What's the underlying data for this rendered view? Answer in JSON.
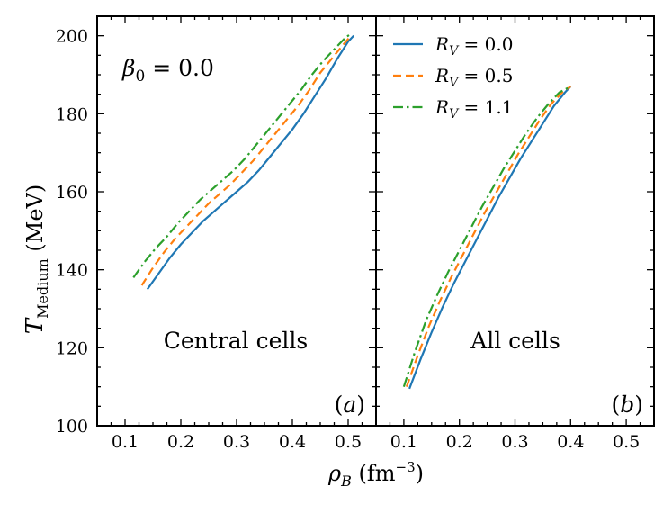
{
  "chart_data": {
    "type": "line",
    "xlabel": "ρ_B (fm^-3)",
    "ylabel": "T_Medium (MeV)",
    "xlim": [
      0.05,
      0.55
    ],
    "ylim": [
      100,
      205
    ],
    "xticks": [
      "0.1",
      "0.2",
      "0.3",
      "0.4",
      "0.5"
    ],
    "yticks": [
      "100",
      "120",
      "140",
      "160",
      "180",
      "200"
    ],
    "colors": {
      "rv0": "#1f77b4",
      "rv05": "#ff7f0e",
      "rv11": "#2ca02c"
    },
    "legend": {
      "placement": "top-left of panel (b)",
      "entries": [
        {
          "key": "rv0",
          "label": "R_V = 0.0",
          "dash": "solid"
        },
        {
          "key": "rv05",
          "label": "R_V = 0.5",
          "dash": "dashed"
        },
        {
          "key": "rv11",
          "label": "R_V = 1.1",
          "dash": "dashdot"
        }
      ]
    },
    "panels": [
      {
        "id": "a",
        "tag": "(a)",
        "title": "Central cells",
        "annotation": "β_0 = 0.0",
        "series": [
          {
            "key": "rv0",
            "x": [
              0.14,
              0.16,
              0.18,
              0.2,
              0.22,
              0.24,
              0.26,
              0.28,
              0.3,
              0.32,
              0.34,
              0.36,
              0.38,
              0.4,
              0.42,
              0.44,
              0.46,
              0.48,
              0.5,
              0.51
            ],
            "y": [
              135,
              139,
              143,
              146.5,
              149.5,
              152.5,
              155,
              157.5,
              160,
              162.5,
              165.5,
              169,
              172.5,
              176,
              180,
              184.5,
              189,
              194,
              198.5,
              200
            ]
          },
          {
            "key": "rv05",
            "x": [
              0.13,
              0.15,
              0.17,
              0.19,
              0.21,
              0.23,
              0.25,
              0.27,
              0.29,
              0.31,
              0.33,
              0.35,
              0.37,
              0.39,
              0.41,
              0.43,
              0.45,
              0.47,
              0.49,
              0.505
            ],
            "y": [
              136,
              140.5,
              144.5,
              148,
              151,
              154,
              157,
              159.5,
              162,
              165,
              168,
              171.5,
              175,
              178.5,
              182,
              186,
              190.5,
              194,
              197.5,
              200
            ]
          },
          {
            "key": "rv11",
            "x": [
              0.115,
              0.135,
              0.155,
              0.175,
              0.195,
              0.215,
              0.235,
              0.255,
              0.275,
              0.295,
              0.315,
              0.335,
              0.355,
              0.375,
              0.395,
              0.415,
              0.435,
              0.455,
              0.475,
              0.495,
              0.505
            ],
            "y": [
              138,
              142,
              145.5,
              148.5,
              152,
              155,
              158,
              160.5,
              163,
              165.5,
              168.5,
              172,
              175.5,
              179,
              182.5,
              186,
              190,
              193.5,
              196.5,
              199.5,
              200.5
            ]
          }
        ]
      },
      {
        "id": "b",
        "tag": "(b)",
        "title": "All cells",
        "series": [
          {
            "key": "rv0",
            "x": [
              0.11,
              0.13,
              0.15,
              0.17,
              0.19,
              0.21,
              0.23,
              0.25,
              0.27,
              0.29,
              0.31,
              0.33,
              0.35,
              0.37,
              0.39,
              0.4
            ],
            "y": [
              109.5,
              117,
              124,
              130.5,
              136.5,
              142,
              147.5,
              153,
              158.5,
              163.5,
              168.5,
              173,
              177.5,
              182,
              185.5,
              187
            ]
          },
          {
            "key": "rv05",
            "x": [
              0.105,
              0.125,
              0.145,
              0.165,
              0.185,
              0.205,
              0.225,
              0.245,
              0.265,
              0.285,
              0.305,
              0.325,
              0.345,
              0.365,
              0.385,
              0.4
            ],
            "y": [
              110,
              118,
              125.5,
              132,
              138,
              143.5,
              149,
              154.5,
              159.5,
              164.5,
              169.5,
              174,
              178.5,
              182.5,
              185.5,
              187
            ]
          },
          {
            "key": "rv11",
            "x": [
              0.1,
              0.12,
              0.14,
              0.16,
              0.18,
              0.2,
              0.22,
              0.24,
              0.26,
              0.28,
              0.3,
              0.32,
              0.34,
              0.36,
              0.38,
              0.4
            ],
            "y": [
              110,
              119,
              127,
              133.5,
              139.5,
              145,
              150.5,
              156,
              161,
              166,
              170.5,
              175,
              179,
              182.5,
              185.5,
              187
            ]
          }
        ]
      }
    ]
  }
}
